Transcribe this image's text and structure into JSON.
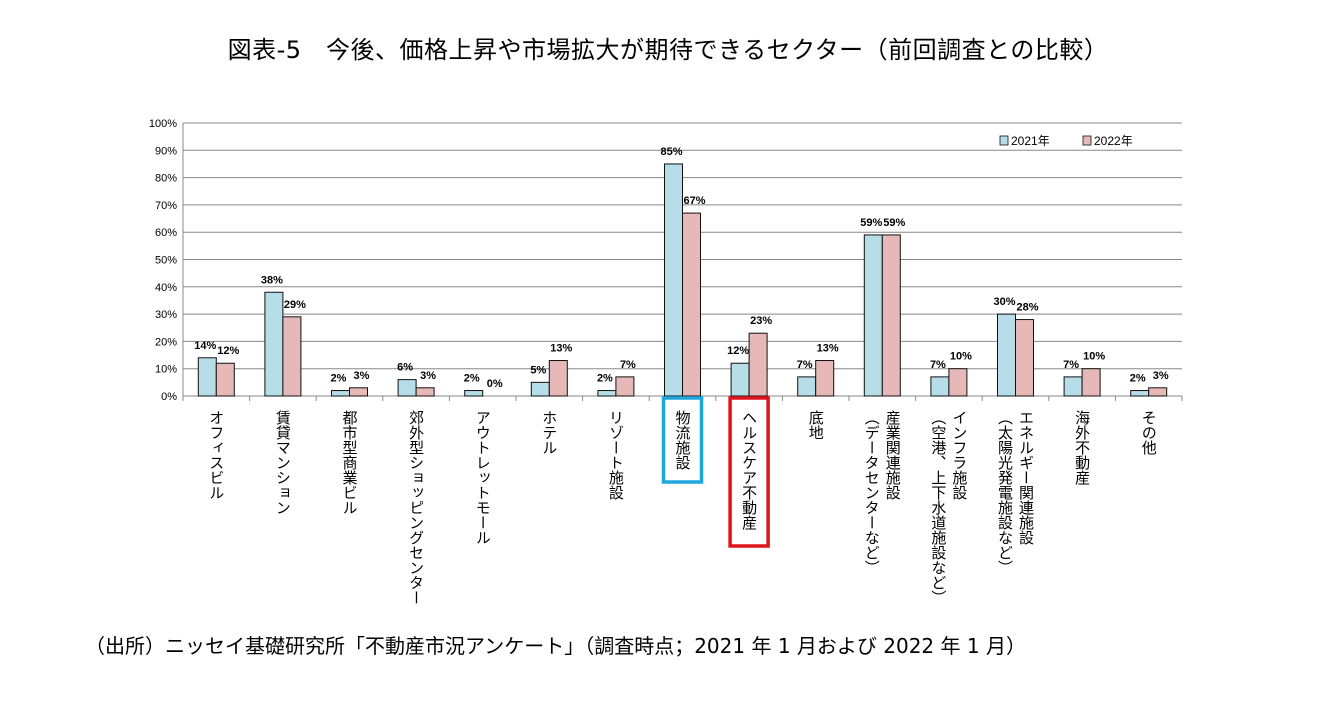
{
  "title": "図表-5　今後、価格上昇や市場拡大が期待できるセクター（前回調査との比較）",
  "source": "（出所）ニッセイ基礎研究所「不動産市況アンケート」（調査時点；2021 年 1 月および 2022 年 1 月）",
  "chart_data": {
    "type": "bar",
    "title": "図表-5　今後、価格上昇や市場拡大が期待できるセクター（前回調査との比較）",
    "xlabel": "",
    "ylabel": "",
    "ylim": [
      0,
      100
    ],
    "yticks": [
      "0%",
      "10%",
      "20%",
      "30%",
      "40%",
      "50%",
      "60%",
      "70%",
      "80%",
      "90%",
      "100%"
    ],
    "grid": true,
    "legend": "top-right",
    "categories": [
      [
        "オフィスビル"
      ],
      [
        "賃貸マンション"
      ],
      [
        "都市型商業ビル"
      ],
      [
        "郊外型ショッピングセンター"
      ],
      [
        "アウトレットモール"
      ],
      [
        "ホテル"
      ],
      [
        "リゾート施設"
      ],
      [
        "物流施設"
      ],
      [
        "ヘルスケア不動産"
      ],
      [
        "底地"
      ],
      [
        "産業関連施設",
        "（データセンターなど）"
      ],
      [
        "インフラ施設",
        "（空港、上下水道施設など）"
      ],
      [
        "エネルギー関連施設",
        "（太陽光発電施設など）"
      ],
      [
        "海外不動産"
      ],
      [
        "その他"
      ]
    ],
    "series": [
      {
        "name": "2021年",
        "color": "#b7dde8",
        "values": [
          14,
          38,
          2,
          6,
          2,
          5,
          2,
          85,
          12,
          7,
          59,
          7,
          30,
          7,
          2
        ],
        "labels": [
          "14%",
          "38%",
          "2%",
          "6%",
          "2%",
          "5%",
          "2%",
          "85%",
          "12%",
          "7%",
          "59%",
          "7%",
          "30%",
          "7%",
          "2%"
        ]
      },
      {
        "name": "2022年",
        "color": "#e6b9b8",
        "values": [
          12,
          29,
          3,
          3,
          0,
          13,
          7,
          67,
          23,
          13,
          59,
          10,
          28,
          10,
          3
        ],
        "labels": [
          "12%",
          "29%",
          "3%",
          "3%",
          "0%",
          "13%",
          "7%",
          "67%",
          "23%",
          "13%",
          "59%",
          "10%",
          "28%",
          "10%",
          "3%"
        ]
      }
    ],
    "highlights": [
      {
        "category_index": 7,
        "color": "#1ea6dd"
      },
      {
        "category_index": 8,
        "color": "#e0141c"
      }
    ]
  }
}
